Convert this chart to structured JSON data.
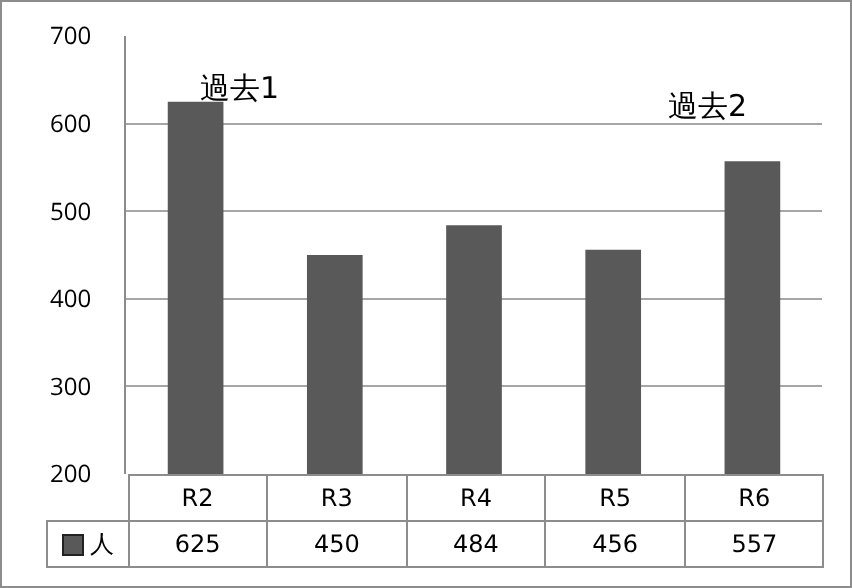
{
  "chart_data": {
    "type": "bar",
    "categories": [
      "R2",
      "R3",
      "R4",
      "R5",
      "R6"
    ],
    "series": [
      {
        "name": "人",
        "color": "#595959",
        "values": [
          625,
          450,
          484,
          456,
          557
        ]
      }
    ],
    "ylim": [
      200,
      700
    ],
    "yticks": [
      200,
      300,
      400,
      500,
      600,
      700
    ],
    "grid": "y",
    "tick_labels": "y",
    "data_labels": true,
    "annotations": [
      "過去1",
      "過去2"
    ]
  }
}
